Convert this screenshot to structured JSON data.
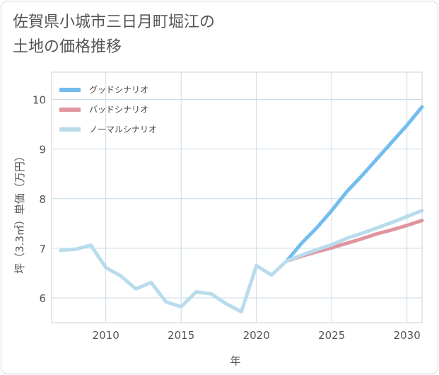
{
  "chart_data": {
    "type": "line",
    "title": [
      "佐賀県小城市三日月町堀江の",
      "土地の価格推移"
    ],
    "xlabel": "年",
    "ylabel": "坪（3.3㎡）単価（万円）",
    "xlim": [
      2006.4,
      2031
    ],
    "ylim": [
      5.5,
      10.55
    ],
    "xticks": [
      2010,
      2015,
      2020,
      2025,
      2030
    ],
    "yticks": [
      6,
      7,
      8,
      9,
      10
    ],
    "grid": true,
    "legend_position": "top-left",
    "series": [
      {
        "name": "グッドシナリオ",
        "color": "#72bdee",
        "x": [
          2022,
          2023,
          2024,
          2025,
          2026,
          2027,
          2028,
          2029,
          2030,
          2031
        ],
        "y": [
          6.74,
          7.1,
          7.41,
          7.76,
          8.14,
          8.46,
          8.8,
          9.14,
          9.48,
          9.85
        ]
      },
      {
        "name": "バッドシナリオ",
        "color": "#e0959e",
        "x": [
          2022,
          2023,
          2024,
          2025,
          2026,
          2027,
          2028,
          2029,
          2030,
          2031
        ],
        "y": [
          6.74,
          6.84,
          6.93,
          7.01,
          7.1,
          7.19,
          7.29,
          7.37,
          7.46,
          7.56
        ]
      },
      {
        "name": "ノーマルシナリオ",
        "color": "#b8dcec",
        "x": [
          2007,
          2008,
          2009,
          2010,
          2011,
          2012,
          2013,
          2014,
          2015,
          2016,
          2017,
          2018,
          2019,
          2020,
          2021,
          2022,
          2023,
          2024,
          2025,
          2026,
          2027,
          2028,
          2029,
          2030,
          2031
        ],
        "y": [
          6.96,
          6.98,
          7.06,
          6.61,
          6.44,
          6.18,
          6.31,
          5.92,
          5.82,
          6.12,
          6.08,
          5.88,
          5.72,
          6.65,
          6.46,
          6.74,
          6.86,
          6.97,
          7.07,
          7.2,
          7.3,
          7.41,
          7.52,
          7.64,
          7.76
        ]
      }
    ]
  }
}
